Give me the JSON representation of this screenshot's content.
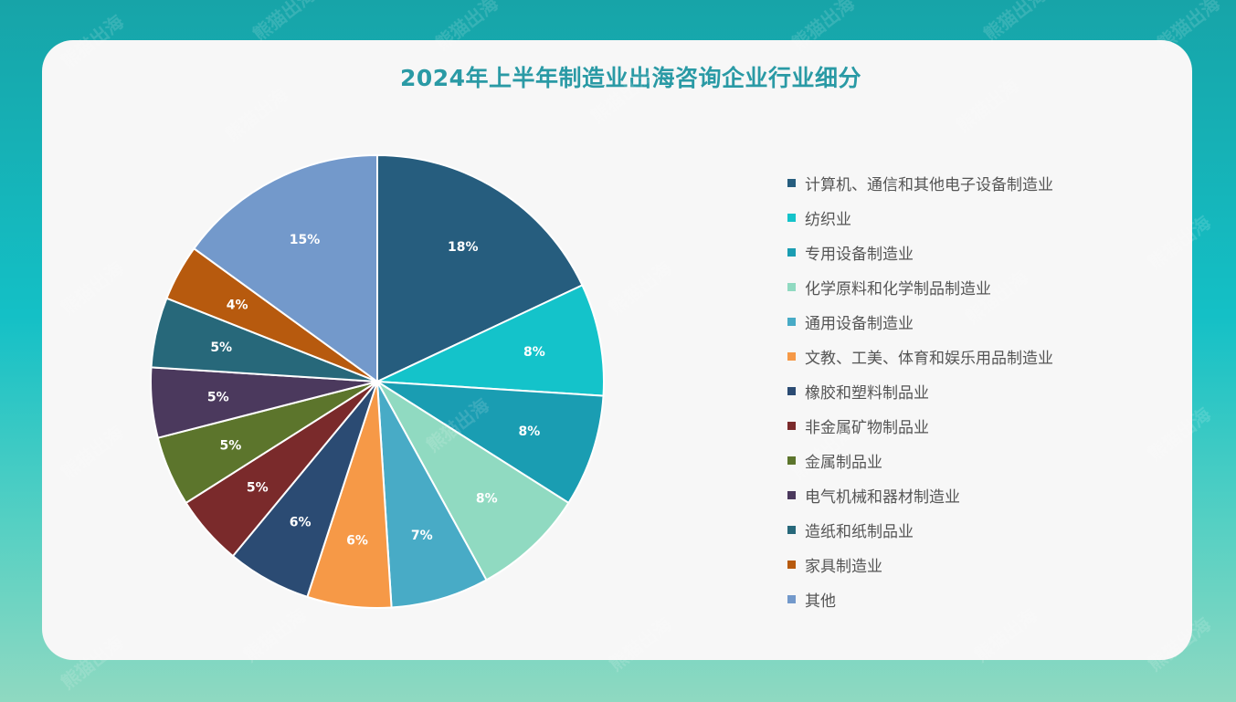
{
  "title": "2024年上半年制造业出海咨询企业行业细分",
  "watermark": "熊猫出海",
  "chart_data": {
    "type": "pie",
    "title": "2024年上半年制造业出海咨询企业行业细分",
    "legend_position": "right",
    "slices": [
      {
        "label": "计算机、通信和其他电子设备制造业",
        "value": 18,
        "display": "18%",
        "color": "#265d7e"
      },
      {
        "label": "纺织业",
        "value": 8,
        "display": "8%",
        "color": "#14c3ca"
      },
      {
        "label": "专用设备制造业",
        "value": 8,
        "display": "8%",
        "color": "#1a9db2"
      },
      {
        "label": "化学原料和化学制品制造业",
        "value": 8,
        "display": "8%",
        "color": "#90dac1"
      },
      {
        "label": "通用设备制造业",
        "value": 7,
        "display": "7%",
        "color": "#48abc6"
      },
      {
        "label": "文教、工美、体育和娱乐用品制造业",
        "value": 6,
        "display": "6%",
        "color": "#f69947"
      },
      {
        "label": "橡胶和塑料制品业",
        "value": 6,
        "display": "6%",
        "color": "#2b4b73"
      },
      {
        "label": "非金属矿物制品业",
        "value": 5,
        "display": "5%",
        "color": "#7a2a2b"
      },
      {
        "label": "金属制品业",
        "value": 5,
        "display": "5%",
        "color": "#5c752c"
      },
      {
        "label": "电气机械和器材制造业",
        "value": 5,
        "display": "5%",
        "color": "#4b395d"
      },
      {
        "label": "造纸和纸制品业",
        "value": 5,
        "display": "5%",
        "color": "#27687a"
      },
      {
        "label": "家具制造业",
        "value": 4,
        "display": "4%",
        "color": "#b75a0e"
      },
      {
        "label": "其他",
        "value": 15,
        "display": "15%",
        "color": "#7399cb"
      }
    ]
  }
}
